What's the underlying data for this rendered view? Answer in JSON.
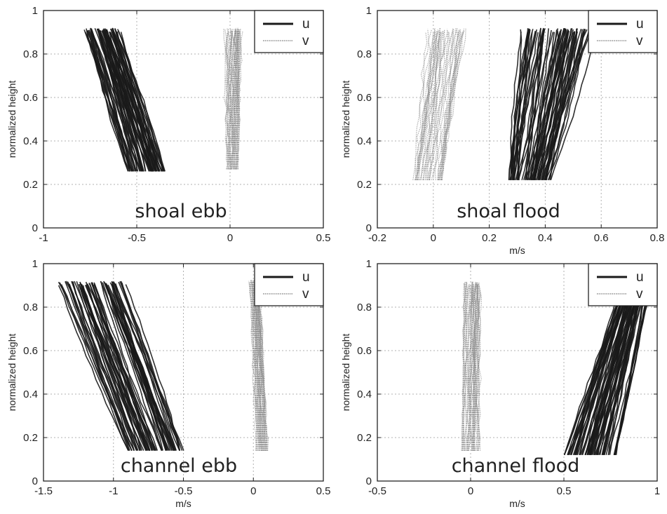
{
  "figure": {
    "colors": {
      "u": "#1a1a1a",
      "v": "#8c8c8c",
      "grid": "#b0b0b0",
      "axes": "#222222"
    }
  },
  "chart_data": [
    {
      "type": "line",
      "panel_label": "shoal ebb",
      "xlabel": "",
      "ylabel": "normalized height",
      "xlim": [
        -1,
        0.5
      ],
      "ylim": [
        0,
        1
      ],
      "xticks": [
        "-1",
        "-0.5",
        "0",
        "0.5"
      ],
      "xtick_values": [
        -1,
        -0.5,
        0,
        0.5
      ],
      "yticks": [
        "0",
        "0.2",
        "0.4",
        "0.6",
        "0.8",
        "1"
      ],
      "ytick_values": [
        0,
        0.2,
        0.4,
        0.6,
        0.8,
        1
      ],
      "grid": true,
      "legend_position": "top-right",
      "legend": [
        "u",
        "v"
      ],
      "series": [
        {
          "name": "u",
          "profiles": {
            "y": [
              0.26,
              0.92
            ],
            "x_bottom": [
              -0.55,
              -0.35
            ],
            "x_top": [
              -0.8,
              -0.58
            ]
          }
        },
        {
          "name": "v",
          "profiles": {
            "y": [
              0.27,
              0.92
            ],
            "x_bottom": [
              -0.02,
              0.04
            ],
            "x_top": [
              -0.03,
              0.07
            ]
          }
        }
      ]
    },
    {
      "type": "line",
      "panel_label": "shoal flood",
      "xlabel": "m/s",
      "ylabel": "normalized height",
      "xlim": [
        -0.2,
        0.8
      ],
      "ylim": [
        0,
        1
      ],
      "xticks": [
        "-0.2",
        "0",
        "0.2",
        "0.4",
        "0.6",
        "0.8"
      ],
      "xtick_values": [
        -0.2,
        0,
        0.2,
        0.4,
        0.6,
        0.8
      ],
      "yticks": [
        "0",
        "0.2",
        "0.4",
        "0.6",
        "0.8",
        "1"
      ],
      "ytick_values": [
        0,
        0.2,
        0.4,
        0.6,
        0.8,
        1
      ],
      "grid": true,
      "legend_position": "top-right",
      "legend": [
        "u",
        "v"
      ],
      "series": [
        {
          "name": "u",
          "profiles": {
            "y": [
              0.22,
              0.92
            ],
            "x_bottom": [
              0.27,
              0.42
            ],
            "x_top": [
              0.3,
              0.6
            ]
          }
        },
        {
          "name": "v",
          "profiles": {
            "y": [
              0.22,
              0.92
            ],
            "x_bottom": [
              -0.07,
              0.03
            ],
            "x_top": [
              -0.03,
              0.12
            ]
          }
        }
      ]
    },
    {
      "type": "line",
      "panel_label": "channel ebb",
      "xlabel": "m/s",
      "ylabel": "normalized height",
      "xlim": [
        -1.5,
        0.5
      ],
      "ylim": [
        0,
        1
      ],
      "xticks": [
        "-1.5",
        "-1",
        "-0.5",
        "0",
        "0.5"
      ],
      "xtick_values": [
        -1.5,
        -1,
        -0.5,
        0,
        0.5
      ],
      "yticks": [
        "0",
        "0.2",
        "0.4",
        "0.6",
        "0.8",
        "1"
      ],
      "ytick_values": [
        0,
        0.2,
        0.4,
        0.6,
        0.8,
        1
      ],
      "grid": true,
      "legend_position": "top-right",
      "legend": [
        "u",
        "v"
      ],
      "series": [
        {
          "name": "u",
          "profiles": {
            "y": [
              0.14,
              0.92
            ],
            "x_bottom": [
              -0.9,
              -0.5
            ],
            "x_top": [
              -1.43,
              -0.88
            ]
          }
        },
        {
          "name": "v",
          "profiles": {
            "y": [
              0.14,
              0.93
            ],
            "x_bottom": [
              0.02,
              0.1
            ],
            "x_top": [
              -0.03,
              0.05
            ]
          }
        }
      ]
    },
    {
      "type": "line",
      "panel_label": "channel flood",
      "xlabel": "m/s",
      "ylabel": "normalized height",
      "xlim": [
        -0.5,
        1
      ],
      "ylim": [
        0,
        1
      ],
      "xticks": [
        "-0.5",
        "0",
        "0.5",
        "1"
      ],
      "xtick_values": [
        -0.5,
        0,
        0.5,
        1
      ],
      "yticks": [
        "0",
        "0.2",
        "0.4",
        "0.6",
        "0.8",
        "1"
      ],
      "ytick_values": [
        0,
        0.2,
        0.4,
        0.6,
        0.8,
        1
      ],
      "grid": true,
      "legend_position": "top-right",
      "legend": [
        "u",
        "v"
      ],
      "series": [
        {
          "name": "u",
          "profiles": {
            "y": [
              0.12,
              0.9
            ],
            "x_bottom": [
              0.5,
              0.78
            ],
            "x_top": [
              0.78,
              0.98
            ]
          }
        },
        {
          "name": "v",
          "profiles": {
            "y": [
              0.14,
              0.92
            ],
            "x_bottom": [
              -0.05,
              0.05
            ],
            "x_top": [
              -0.05,
              0.07
            ]
          }
        }
      ]
    }
  ]
}
